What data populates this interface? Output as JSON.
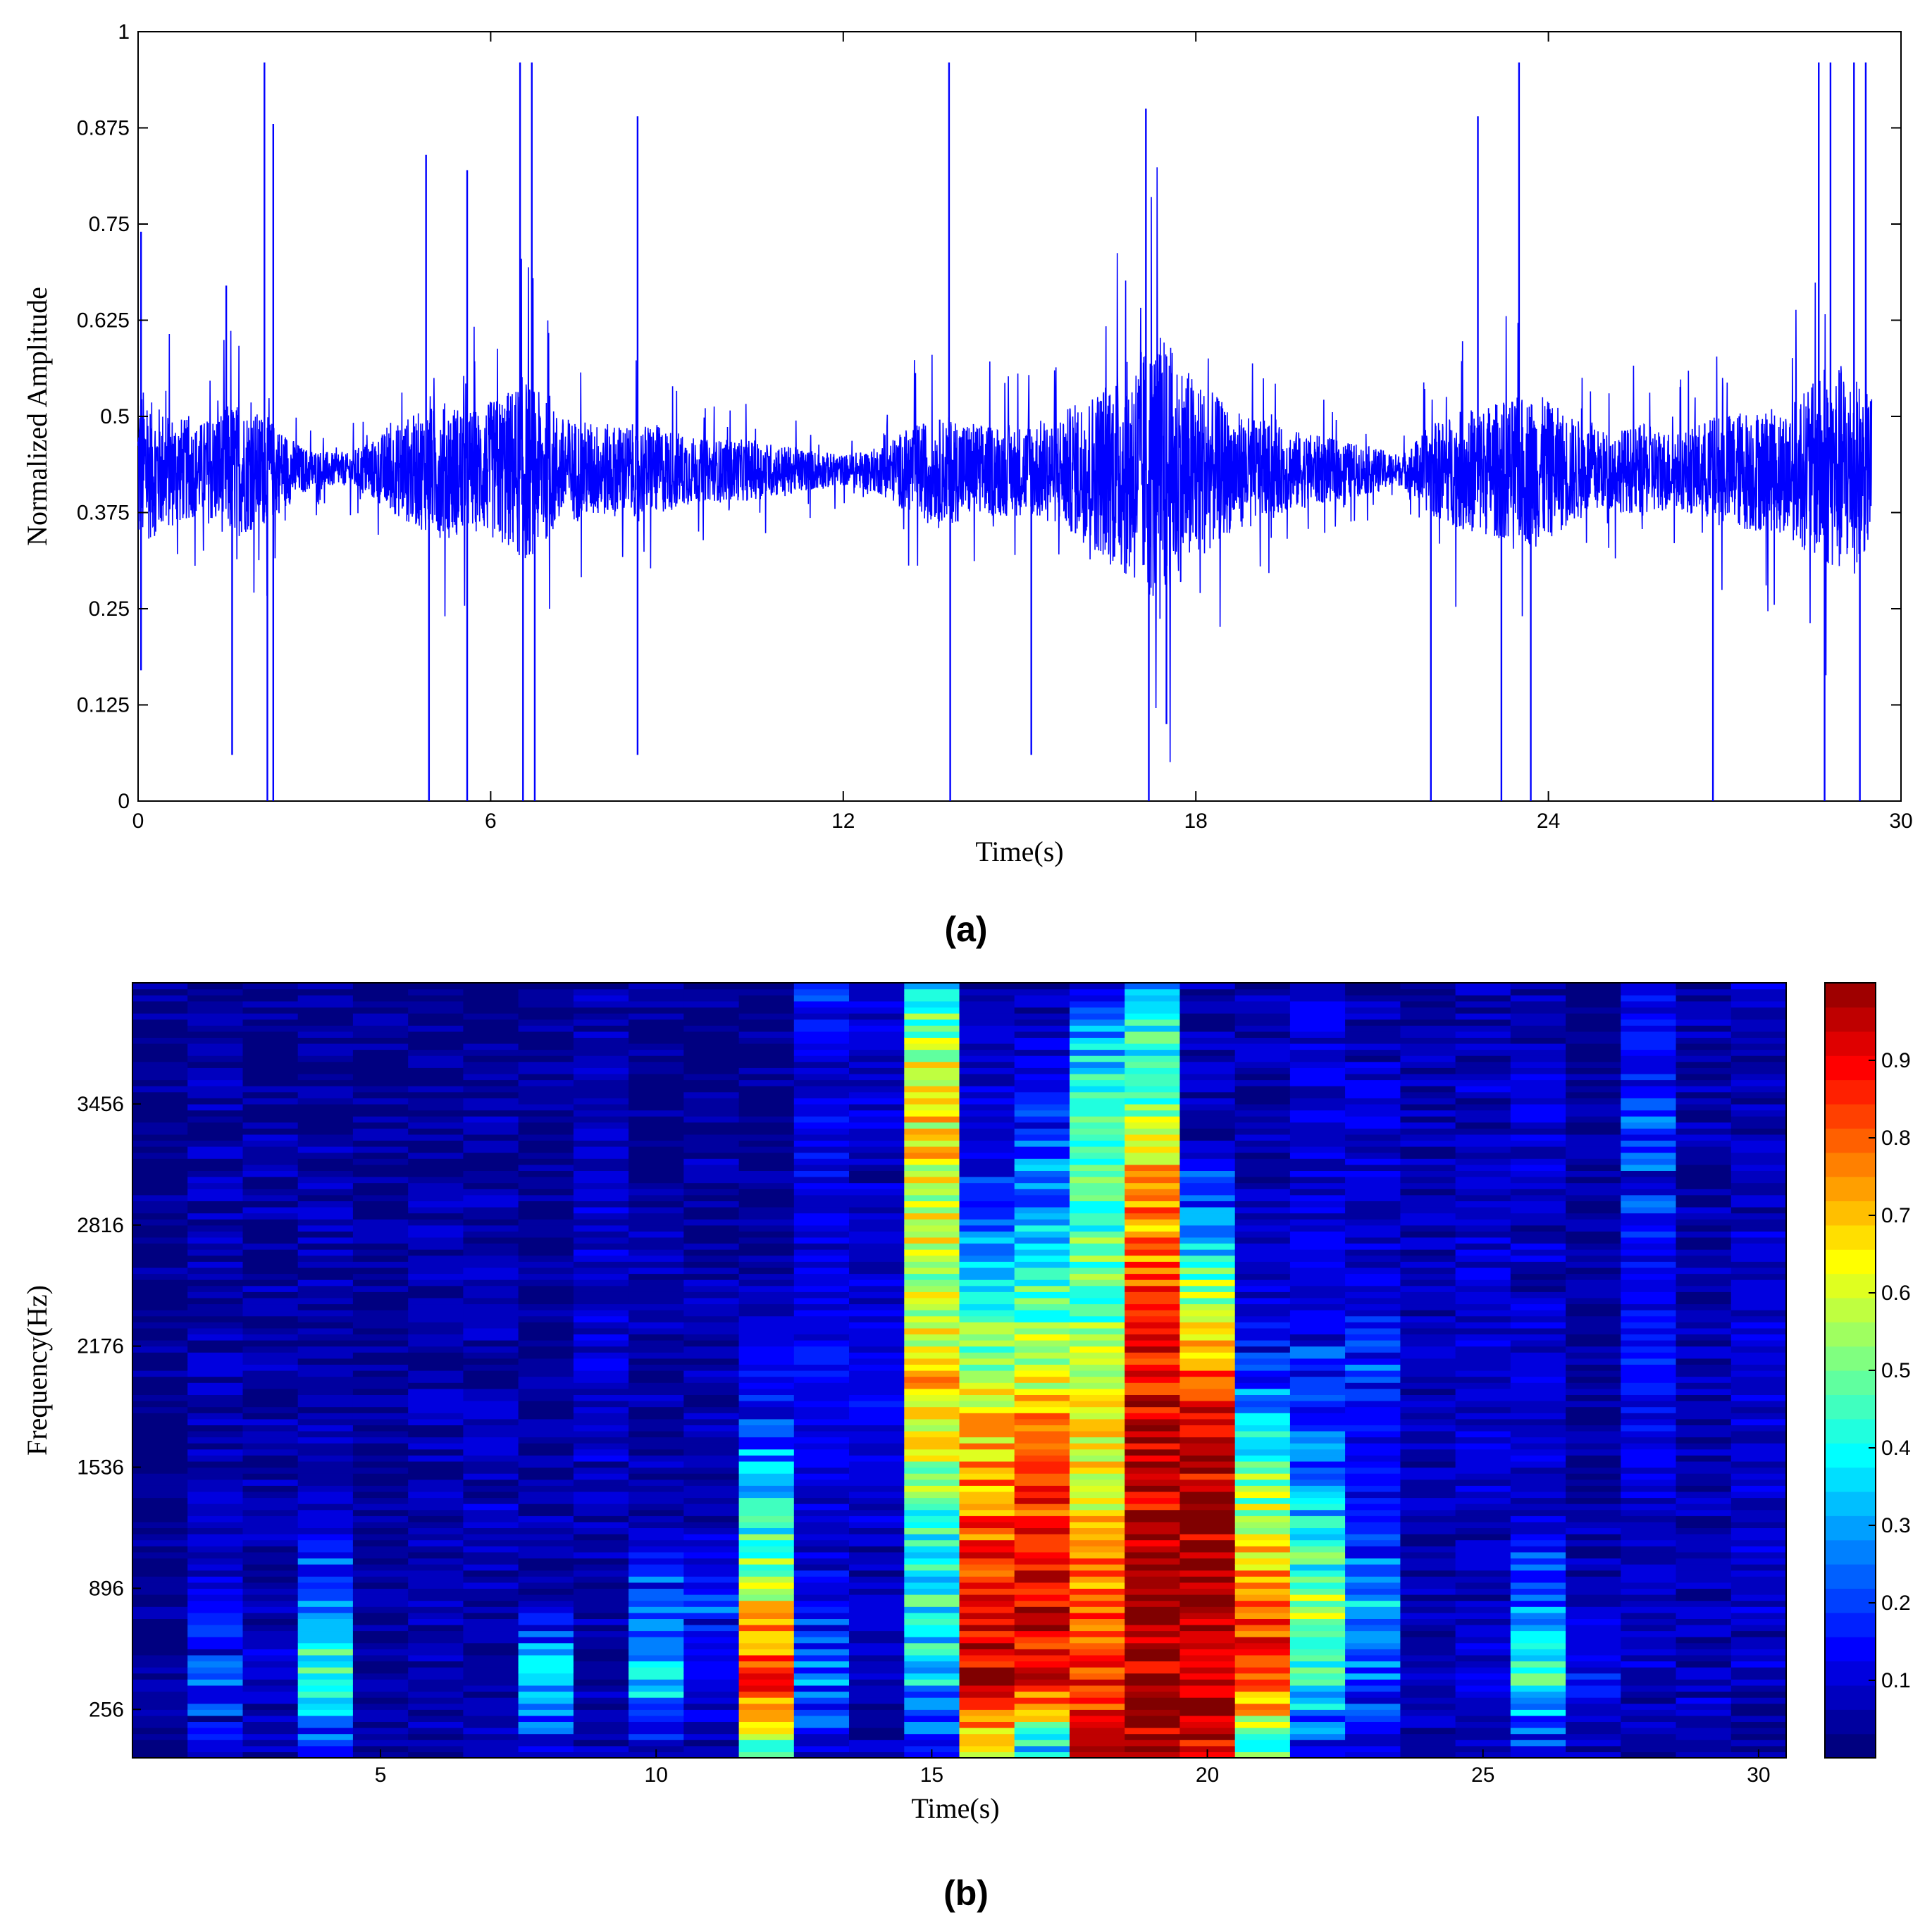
{
  "chart_data": [
    {
      "panel_label": "(a)",
      "type": "line",
      "xlabel": "Time(s)",
      "ylabel": "Normalized Amplitude",
      "xlim": [
        0,
        30
      ],
      "ylim": [
        0,
        1
      ],
      "xticks": [
        0,
        6,
        12,
        18,
        24,
        30
      ],
      "xtick_labels": [
        "0",
        "6",
        "12",
        "18",
        "24",
        "30"
      ],
      "yticks": [
        0,
        0.125,
        0.25,
        0.375,
        0.5,
        0.625,
        0.75,
        0.875,
        1
      ],
      "ytick_labels": [
        "0",
        "0.125",
        "0.25",
        "0.375",
        "0.5",
        "0.625",
        "0.75",
        "0.875",
        "1"
      ],
      "grid": false,
      "line_color": "#0000ff",
      "series": [
        {
          "baseline": 0.43,
          "duration_s": 29.5,
          "envelope": {
            "t": [
              0,
              0.2,
              1.0,
              1.6,
              2.2,
              2.8,
              3.5,
              4.0,
              4.6,
              5.2,
              5.8,
              6.6,
              7.2,
              8.0,
              8.8,
              9.6,
              10.4,
              11.2,
              12.0,
              12.6,
              13.2,
              13.8,
              14.4,
              15.0,
              15.6,
              16.2,
              16.8,
              17.4,
              18.0,
              18.6,
              19.2,
              19.8,
              20.4,
              21.0,
              21.5,
              22.0,
              22.6,
              23.2,
              23.8,
              24.4,
              25.0,
              25.6,
              26.2,
              26.8,
              27.4,
              28.0,
              28.6,
              29.0,
              29.5
            ],
            "amplitude": [
              0.12,
              0.09,
              0.06,
              0.09,
              0.07,
              0.03,
              0.02,
              0.04,
              0.07,
              0.09,
              0.08,
              0.12,
              0.07,
              0.06,
              0.06,
              0.04,
              0.04,
              0.03,
              0.02,
              0.03,
              0.06,
              0.07,
              0.06,
              0.06,
              0.07,
              0.1,
              0.14,
              0.18,
              0.12,
              0.08,
              0.06,
              0.05,
              0.04,
              0.03,
              0.02,
              0.06,
              0.08,
              0.09,
              0.1,
              0.07,
              0.05,
              0.06,
              0.05,
              0.07,
              0.08,
              0.08,
              0.12,
              0.14,
              0.1
            ]
          },
          "spikes": [
            {
              "t": 0.05,
              "y": 0.74
            },
            {
              "t": 0.05,
              "y": 0.17
            },
            {
              "t": 1.5,
              "y": 0.67
            },
            {
              "t": 1.6,
              "y": 0.06
            },
            {
              "t": 2.15,
              "y": 0.96
            },
            {
              "t": 2.2,
              "y": 0.0
            },
            {
              "t": 2.3,
              "y": 0.88
            },
            {
              "t": 2.3,
              "y": 0.0
            },
            {
              "t": 4.9,
              "y": 0.84
            },
            {
              "t": 4.95,
              "y": 0.0
            },
            {
              "t": 5.6,
              "y": 0.82
            },
            {
              "t": 5.6,
              "y": 0.0
            },
            {
              "t": 6.5,
              "y": 0.96
            },
            {
              "t": 6.55,
              "y": 0.0
            },
            {
              "t": 6.7,
              "y": 0.96
            },
            {
              "t": 6.75,
              "y": 0.0
            },
            {
              "t": 8.5,
              "y": 0.89
            },
            {
              "t": 8.5,
              "y": 0.06
            },
            {
              "t": 13.8,
              "y": 0.96
            },
            {
              "t": 13.82,
              "y": 0.0
            },
            {
              "t": 15.2,
              "y": 0.06
            },
            {
              "t": 17.15,
              "y": 0.9
            },
            {
              "t": 17.2,
              "y": 0.0
            },
            {
              "t": 17.5,
              "y": 0.1
            },
            {
              "t": 22.0,
              "y": 0.0
            },
            {
              "t": 22.8,
              "y": 0.89
            },
            {
              "t": 23.2,
              "y": 0.0
            },
            {
              "t": 23.5,
              "y": 0.96
            },
            {
              "t": 23.7,
              "y": 0.0
            },
            {
              "t": 26.8,
              "y": 0.0
            },
            {
              "t": 28.6,
              "y": 0.96
            },
            {
              "t": 28.8,
              "y": 0.96
            },
            {
              "t": 28.7,
              "y": 0.0
            },
            {
              "t": 29.2,
              "y": 0.96
            },
            {
              "t": 29.3,
              "y": 0.0
            },
            {
              "t": 29.4,
              "y": 0.96
            }
          ]
        }
      ]
    },
    {
      "panel_label": "(b)",
      "type": "heatmap",
      "xlabel": "Time(s)",
      "ylabel": "Frequency(Hz)",
      "xlim": [
        0.5,
        30.5
      ],
      "xticks": [
        5,
        10,
        15,
        20,
        25,
        30
      ],
      "xtick_labels": [
        "5",
        "10",
        "15",
        "20",
        "25",
        "30"
      ],
      "ylim": [
        0,
        4096
      ],
      "yticks": [
        256,
        896,
        1536,
        2176,
        2816,
        3456
      ],
      "ytick_labels": [
        "256",
        "896",
        "1536",
        "2176",
        "2816",
        "3456"
      ],
      "colorbar": {
        "range": [
          0,
          1
        ],
        "ticks": [
          0.1,
          0.2,
          0.3,
          0.4,
          0.5,
          0.6,
          0.7,
          0.8,
          0.9
        ],
        "tick_labels": [
          "0.1",
          "0.2",
          "0.3",
          "0.4",
          "0.5",
          "0.6",
          "0.7",
          "0.8",
          "0.9"
        ],
        "colormap": "jet",
        "levels": 32
      },
      "columns_s": [
        1,
        2,
        3,
        4,
        5,
        6,
        7,
        8,
        9,
        10,
        11,
        12,
        13,
        14,
        15,
        16,
        17,
        18,
        19,
        20,
        21,
        22,
        23,
        24,
        25,
        26,
        27,
        28,
        29,
        30
      ],
      "column_profiles": [
        [
          0.02,
          0.04,
          0.03,
          0.03,
          0.02,
          0.02,
          0.02,
          0.02,
          0.03,
          0.02,
          0.02
        ],
        [
          0.08,
          0.22,
          0.1,
          0.08,
          0.07,
          0.06,
          0.06,
          0.07,
          0.06,
          0.05,
          0.05
        ],
        [
          0.05,
          0.08,
          0.06,
          0.05,
          0.05,
          0.06,
          0.05,
          0.05,
          0.05,
          0.04,
          0.04
        ],
        [
          0.1,
          0.45,
          0.3,
          0.08,
          0.07,
          0.06,
          0.06,
          0.06,
          0.05,
          0.04,
          0.04
        ],
        [
          0.04,
          0.05,
          0.05,
          0.04,
          0.04,
          0.04,
          0.04,
          0.03,
          0.03,
          0.03,
          0.03
        ],
        [
          0.05,
          0.08,
          0.06,
          0.05,
          0.05,
          0.05,
          0.05,
          0.05,
          0.04,
          0.04,
          0.04
        ],
        [
          0.06,
          0.07,
          0.06,
          0.08,
          0.07,
          0.06,
          0.06,
          0.06,
          0.05,
          0.05,
          0.04
        ],
        [
          0.06,
          0.35,
          0.06,
          0.05,
          0.04,
          0.04,
          0.05,
          0.04,
          0.04,
          0.04,
          0.03
        ],
        [
          0.05,
          0.06,
          0.05,
          0.06,
          0.08,
          0.1,
          0.08,
          0.08,
          0.07,
          0.06,
          0.05
        ],
        [
          0.06,
          0.4,
          0.2,
          0.06,
          0.05,
          0.05,
          0.05,
          0.05,
          0.04,
          0.04,
          0.03
        ],
        [
          0.06,
          0.1,
          0.18,
          0.08,
          0.07,
          0.06,
          0.06,
          0.05,
          0.05,
          0.04,
          0.04
        ],
        [
          0.45,
          0.85,
          0.65,
          0.4,
          0.25,
          0.12,
          0.06,
          0.04,
          0.03,
          0.03,
          0.03
        ],
        [
          0.08,
          0.25,
          0.12,
          0.1,
          0.12,
          0.14,
          0.12,
          0.1,
          0.12,
          0.1,
          0.2
        ],
        [
          0.06,
          0.08,
          0.07,
          0.08,
          0.1,
          0.12,
          0.1,
          0.08,
          0.08,
          0.1,
          0.12
        ],
        [
          0.1,
          0.35,
          0.4,
          0.45,
          0.6,
          0.7,
          0.55,
          0.6,
          0.65,
          0.6,
          0.35
        ],
        [
          0.6,
          0.95,
          0.9,
          0.8,
          0.7,
          0.55,
          0.4,
          0.25,
          0.12,
          0.08,
          0.06
        ],
        [
          0.3,
          0.9,
          0.92,
          0.85,
          0.8,
          0.6,
          0.45,
          0.3,
          0.18,
          0.1,
          0.06
        ],
        [
          0.95,
          0.85,
          0.8,
          0.7,
          0.62,
          0.55,
          0.5,
          0.45,
          0.4,
          0.35,
          0.08
        ],
        [
          0.95,
          0.98,
          0.98,
          0.97,
          0.95,
          0.9,
          0.82,
          0.75,
          0.6,
          0.45,
          0.3
        ],
        [
          0.9,
          0.98,
          0.98,
          0.96,
          0.92,
          0.8,
          0.55,
          0.25,
          0.08,
          0.06,
          0.05
        ],
        [
          0.4,
          0.85,
          0.8,
          0.6,
          0.4,
          0.2,
          0.1,
          0.08,
          0.06,
          0.05,
          0.05
        ],
        [
          0.1,
          0.4,
          0.55,
          0.35,
          0.25,
          0.18,
          0.12,
          0.1,
          0.1,
          0.1,
          0.1
        ],
        [
          0.06,
          0.25,
          0.3,
          0.15,
          0.12,
          0.18,
          0.12,
          0.08,
          0.1,
          0.08,
          0.06
        ],
        [
          0.05,
          0.08,
          0.07,
          0.06,
          0.07,
          0.06,
          0.06,
          0.05,
          0.06,
          0.05,
          0.05
        ],
        [
          0.06,
          0.1,
          0.08,
          0.08,
          0.1,
          0.09,
          0.1,
          0.08,
          0.08,
          0.07,
          0.06
        ],
        [
          0.08,
          0.45,
          0.25,
          0.1,
          0.1,
          0.09,
          0.08,
          0.08,
          0.1,
          0.08,
          0.07
        ],
        [
          0.05,
          0.15,
          0.07,
          0.05,
          0.04,
          0.04,
          0.04,
          0.04,
          0.04,
          0.03,
          0.03
        ],
        [
          0.05,
          0.08,
          0.07,
          0.1,
          0.1,
          0.15,
          0.12,
          0.15,
          0.2,
          0.15,
          0.12
        ],
        [
          0.06,
          0.08,
          0.07,
          0.07,
          0.07,
          0.06,
          0.06,
          0.06,
          0.05,
          0.06,
          0.06
        ],
        [
          0.06,
          0.08,
          0.08,
          0.08,
          0.08,
          0.09,
          0.1,
          0.08,
          0.07,
          0.08,
          0.1
        ]
      ]
    }
  ]
}
